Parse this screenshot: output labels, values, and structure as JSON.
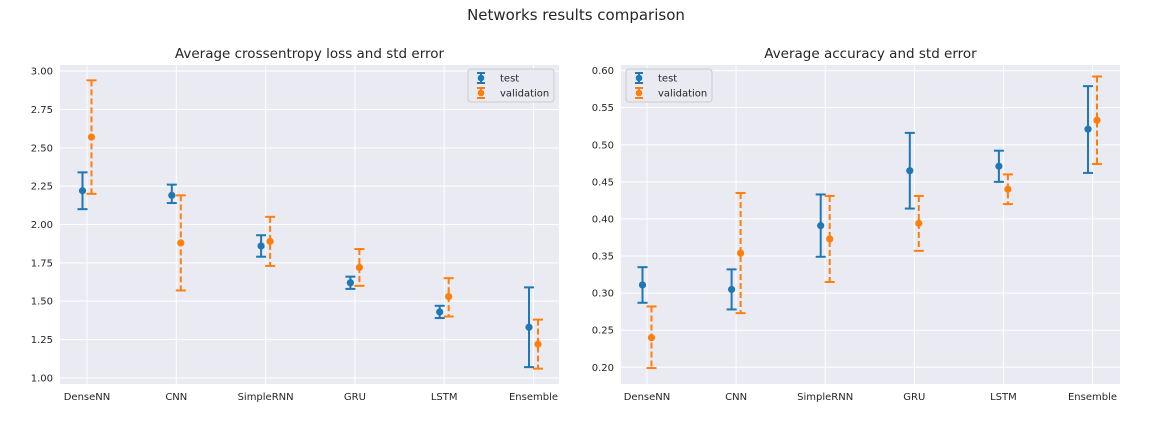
{
  "figure": {
    "suptitle": "Networks results comparison"
  },
  "chart_data": [
    {
      "type": "errorbar",
      "title": "Average crossentropy loss and std error",
      "xlabel": "",
      "ylabel": "",
      "categories": [
        "DenseNN",
        "CNN",
        "SimpleRNN",
        "GRU",
        "LSTM",
        "Ensemble"
      ],
      "ylim": [
        0.96,
        3.04
      ],
      "yticks": [
        "1.00",
        "1.25",
        "1.50",
        "1.75",
        "2.00",
        "2.25",
        "2.50",
        "2.75",
        "3.00"
      ],
      "grid": true,
      "legend_position": "top-right",
      "series": [
        {
          "name": "test",
          "color": "#1f77b4",
          "linestyle": "solid",
          "values": [
            2.22,
            2.19,
            1.86,
            1.62,
            1.43,
            1.33
          ],
          "lower": [
            2.1,
            2.14,
            1.79,
            1.58,
            1.39,
            1.07
          ],
          "upper": [
            2.34,
            2.26,
            1.93,
            1.66,
            1.47,
            1.59
          ]
        },
        {
          "name": "validation",
          "color": "#ff7f0e",
          "linestyle": "dashed",
          "values": [
            2.57,
            1.88,
            1.89,
            1.72,
            1.53,
            1.22
          ],
          "lower": [
            2.2,
            1.57,
            1.73,
            1.6,
            1.4,
            1.06
          ],
          "upper": [
            2.94,
            2.19,
            2.05,
            1.84,
            1.65,
            1.38
          ]
        }
      ]
    },
    {
      "type": "errorbar",
      "title": "Average accuracy and std error",
      "xlabel": "",
      "ylabel": "",
      "categories": [
        "DenseNN",
        "CNN",
        "SimpleRNN",
        "GRU",
        "LSTM",
        "Ensemble"
      ],
      "ylim": [
        0.1775,
        0.6075
      ],
      "yticks": [
        "0.20",
        "0.25",
        "0.30",
        "0.35",
        "0.40",
        "0.45",
        "0.50",
        "0.55",
        "0.60"
      ],
      "grid": true,
      "legend_position": "top-left",
      "series": [
        {
          "name": "test",
          "color": "#1f77b4",
          "linestyle": "solid",
          "values": [
            0.311,
            0.305,
            0.391,
            0.465,
            0.471,
            0.521
          ],
          "lower": [
            0.287,
            0.278,
            0.349,
            0.414,
            0.45,
            0.462
          ],
          "upper": [
            0.335,
            0.332,
            0.433,
            0.516,
            0.492,
            0.579
          ]
        },
        {
          "name": "validation",
          "color": "#ff7f0e",
          "linestyle": "dashed",
          "values": [
            0.24,
            0.354,
            0.373,
            0.394,
            0.44,
            0.533
          ],
          "lower": [
            0.199,
            0.273,
            0.315,
            0.357,
            0.42,
            0.474
          ],
          "upper": [
            0.282,
            0.435,
            0.431,
            0.431,
            0.46,
            0.592
          ]
        }
      ]
    }
  ]
}
